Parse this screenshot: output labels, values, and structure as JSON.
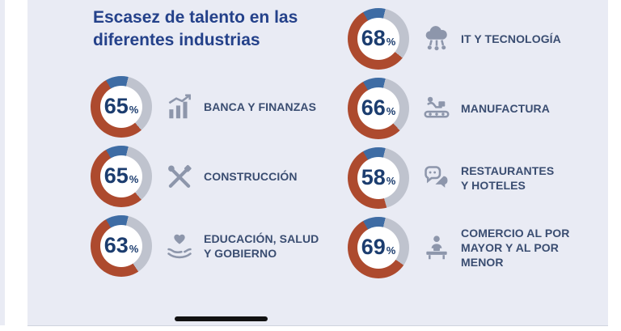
{
  "page": {
    "title": "Escasez de talento en las diferentes industrias"
  },
  "colors": {
    "background": "#e9ebf4",
    "title_text": "#24418a",
    "label_text": "#3a4d71",
    "percent_text": "#1c3d6f",
    "icon": "#8d96ab",
    "donut_primary": "#ad4a2e",
    "donut_secondary": "#3e6ca4",
    "donut_remainder": "#bfc3ce",
    "home_bar": "#121212"
  },
  "chart_data": {
    "type": "donut",
    "title": "Escasez de talento en las diferentes industrias",
    "unit": "%",
    "value_range": [
      0,
      100
    ],
    "legend_position": "none",
    "segment_colors": {
      "filled_main": "#ad4a2e",
      "filled_accent": "#3e6ca4",
      "remainder": "#bfc3ce"
    },
    "accent_fraction_pct": 12,
    "items": [
      {
        "label": "BANCA Y FINANZAS",
        "label_lines": [
          "BANCA Y FINANZAS"
        ],
        "value": 65,
        "icon": "bar-chart-icon",
        "column": "left"
      },
      {
        "label": "CONSTRUCCIÓN",
        "label_lines": [
          "CONSTRUCCIÓN"
        ],
        "value": 65,
        "icon": "tools-icon",
        "column": "left"
      },
      {
        "label": "EDUCACIÓN, SALUD Y GOBIERNO",
        "label_lines": [
          "EDUCACIÓN, SALUD",
          "Y GOBIERNO"
        ],
        "value": 63,
        "icon": "care-hands-icon",
        "column": "left"
      },
      {
        "label": "IT Y TECNOLOGÍA",
        "label_lines": [
          "IT Y TECNOLOGÍA"
        ],
        "value": 68,
        "icon": "cloud-network-icon",
        "column": "right"
      },
      {
        "label": "MANUFACTURA",
        "label_lines": [
          "MANUFACTURA"
        ],
        "value": 66,
        "icon": "conveyor-icon",
        "column": "right"
      },
      {
        "label": "RESTAURANTES Y HOTELES",
        "label_lines": [
          "RESTAURANTES",
          "Y HOTELES"
        ],
        "value": 58,
        "icon": "chat-bubbles-icon",
        "column": "right"
      },
      {
        "label": "COMERCIO AL POR MAYOR Y AL POR MENOR",
        "label_lines": [
          "COMERCIO AL POR",
          "MAYOR Y AL POR",
          "MENOR"
        ],
        "value": 69,
        "icon": "merchant-icon",
        "column": "right"
      }
    ]
  }
}
